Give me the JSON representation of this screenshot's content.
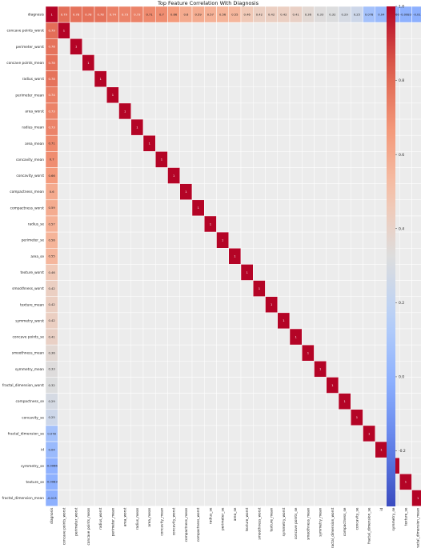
{
  "chart_data": {
    "type": "heatmap",
    "title": "Top Feature Correlation With Diagnosis",
    "labels": [
      "diagnosis",
      "concave points_worst",
      "perimeter_worst",
      "concave points_mean",
      "radius_worst",
      "perimeter_mean",
      "area_worst",
      "radius_mean",
      "area_mean",
      "concavity_mean",
      "concavity_worst",
      "compactness_mean",
      "compactness_worst",
      "radius_se",
      "perimeter_se",
      "area_se",
      "texture_worst",
      "smoothness_worst",
      "texture_mean",
      "symmetry_worst",
      "concave points_se",
      "smoothness_mean",
      "symmetry_mean",
      "fractal_dimension_worst",
      "compactness_se",
      "concavity_se",
      "fractal_dimension_se",
      "id",
      "symmetry_se",
      "texture_se",
      "fractal_dimension_mean"
    ],
    "colorbar": {
      "min": -0.35,
      "max": 1.0,
      "ticks": [
        1.0,
        0.8,
        0.6,
        0.4,
        0.2,
        0.0,
        -0.2
      ]
    },
    "diagonal_value": 1,
    "first_row_values": [
      1,
      0.79,
      0.78,
      0.78,
      0.78,
      0.74,
      0.73,
      0.73,
      0.71,
      0.7,
      0.66,
      0.6,
      0.59,
      0.57,
      0.56,
      0.55,
      0.46,
      0.42,
      0.42,
      0.42,
      0.41,
      0.36,
      0.33,
      0.32,
      0.29,
      0.25,
      0.078,
      0.04,
      -0.0066,
      -0.0083,
      -0.013
    ]
  }
}
